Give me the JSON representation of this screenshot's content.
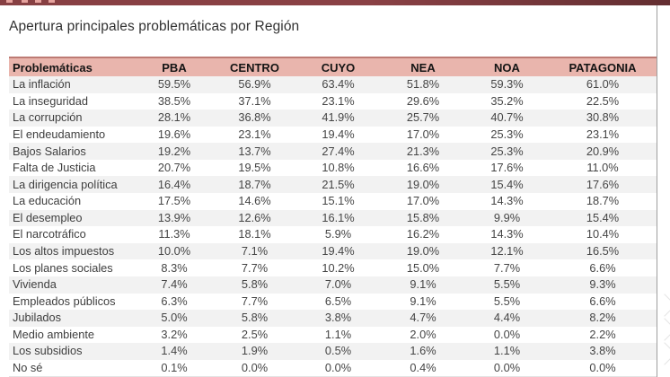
{
  "page": {
    "title": "Apertura principales problemáticas por Región"
  },
  "colors": {
    "top_bar": "#8a4145",
    "header_background": "#e9b5ad",
    "stripe_row": "#f2f2f2",
    "header_text": "#141414",
    "body_text": "#454545"
  },
  "table": {
    "columns": [
      "Problemáticas",
      "PBA",
      "CENTRO",
      "CUYO",
      "NEA",
      "NOA",
      "PATAGONIA"
    ],
    "rows": [
      {
        "label": "La inflación",
        "values": [
          "59.5%",
          "56.9%",
          "63.4%",
          "51.8%",
          "59.3%",
          "61.0%"
        ]
      },
      {
        "label": "La inseguridad",
        "values": [
          "38.5%",
          "37.1%",
          "23.1%",
          "29.6%",
          "35.2%",
          "22.5%"
        ]
      },
      {
        "label": "La corrupción",
        "values": [
          "28.1%",
          "36.8%",
          "41.9%",
          "25.7%",
          "40.7%",
          "30.8%"
        ]
      },
      {
        "label": "El endeudamiento",
        "values": [
          "19.6%",
          "23.1%",
          "19.4%",
          "17.0%",
          "25.3%",
          "23.1%"
        ]
      },
      {
        "label": "Bajos Salarios",
        "values": [
          "19.2%",
          "13.7%",
          "27.4%",
          "21.3%",
          "25.3%",
          "20.9%"
        ]
      },
      {
        "label": "Falta de Justicia",
        "values": [
          "20.7%",
          "19.5%",
          "10.8%",
          "16.6%",
          "17.6%",
          "11.0%"
        ]
      },
      {
        "label": "La dirigencia política",
        "values": [
          "16.4%",
          "18.7%",
          "21.5%",
          "19.0%",
          "15.4%",
          "17.6%"
        ]
      },
      {
        "label": "La educación",
        "values": [
          "17.5%",
          "14.6%",
          "15.1%",
          "17.0%",
          "14.3%",
          "18.7%"
        ]
      },
      {
        "label": "El desempleo",
        "values": [
          "13.9%",
          "12.6%",
          "16.1%",
          "15.8%",
          "9.9%",
          "15.4%"
        ]
      },
      {
        "label": "El narcotráfico",
        "values": [
          "11.3%",
          "18.1%",
          "5.9%",
          "16.2%",
          "14.3%",
          "10.4%"
        ]
      },
      {
        "label": "Los altos impuestos",
        "values": [
          "10.0%",
          "7.1%",
          "19.4%",
          "19.0%",
          "12.1%",
          "16.5%"
        ]
      },
      {
        "label": "Los planes sociales",
        "values": [
          "8.3%",
          "7.7%",
          "10.2%",
          "15.0%",
          "7.7%",
          "6.6%"
        ]
      },
      {
        "label": "Vivienda",
        "values": [
          "7.4%",
          "5.8%",
          "7.0%",
          "9.1%",
          "5.5%",
          "9.3%"
        ]
      },
      {
        "label": "Empleados públicos",
        "values": [
          "6.3%",
          "7.7%",
          "6.5%",
          "9.1%",
          "5.5%",
          "6.6%"
        ]
      },
      {
        "label": "Jubilados",
        "values": [
          "5.0%",
          "5.8%",
          "3.8%",
          "4.7%",
          "4.4%",
          "8.2%"
        ]
      },
      {
        "label": "Medio ambiente",
        "values": [
          "3.2%",
          "2.5%",
          "1.1%",
          "2.0%",
          "0.0%",
          "2.2%"
        ]
      },
      {
        "label": "Los subsidios",
        "values": [
          "1.4%",
          "1.9%",
          "0.5%",
          "1.6%",
          "1.1%",
          "3.8%"
        ]
      },
      {
        "label": "No sé",
        "values": [
          "0.1%",
          "0.0%",
          "0.0%",
          "0.4%",
          "0.0%",
          "0.0%"
        ]
      }
    ]
  }
}
